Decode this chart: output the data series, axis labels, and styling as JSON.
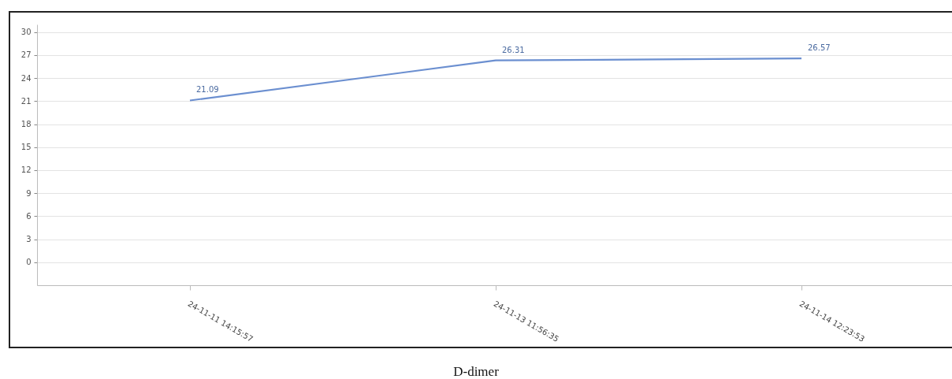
{
  "chart_data": {
    "type": "line",
    "title": "D-dimer",
    "categories": [
      "24-11-11 14:15:57",
      "24-11-13 11:56:35",
      "24-11-14 12:23:53"
    ],
    "series": [
      {
        "color": "#6b8fd0",
        "values": [
          21.09,
          26.31,
          26.57
        ]
      }
    ],
    "ylim": [
      -3,
      31
    ],
    "yticks": [
      0,
      3,
      6,
      9,
      12,
      15,
      18,
      21,
      24,
      27,
      30
    ],
    "grid": "y",
    "data_labels": true,
    "marker": "none",
    "line_style": "solid"
  }
}
